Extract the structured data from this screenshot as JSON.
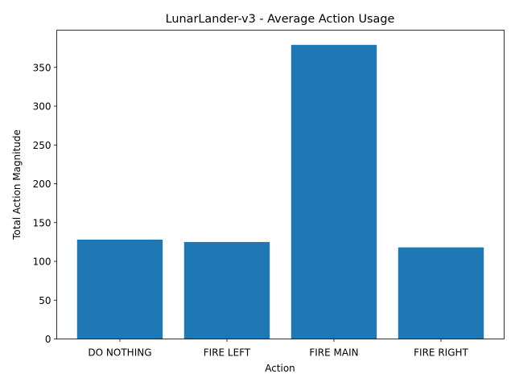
{
  "chart_data": {
    "type": "bar",
    "title": "LunarLander-v3 - Average Action Usage",
    "xlabel": "Action",
    "ylabel": "Total Action Magnitude",
    "categories": [
      "DO NOTHING",
      "FIRE LEFT",
      "FIRE MAIN",
      "FIRE RIGHT"
    ],
    "values": [
      128,
      125,
      379,
      118
    ],
    "ylim": [
      0,
      397.95
    ],
    "yticks": [
      0,
      50,
      100,
      150,
      200,
      250,
      300,
      350
    ],
    "grid": false,
    "legend": "none",
    "bar_color": "#1f77b4"
  }
}
